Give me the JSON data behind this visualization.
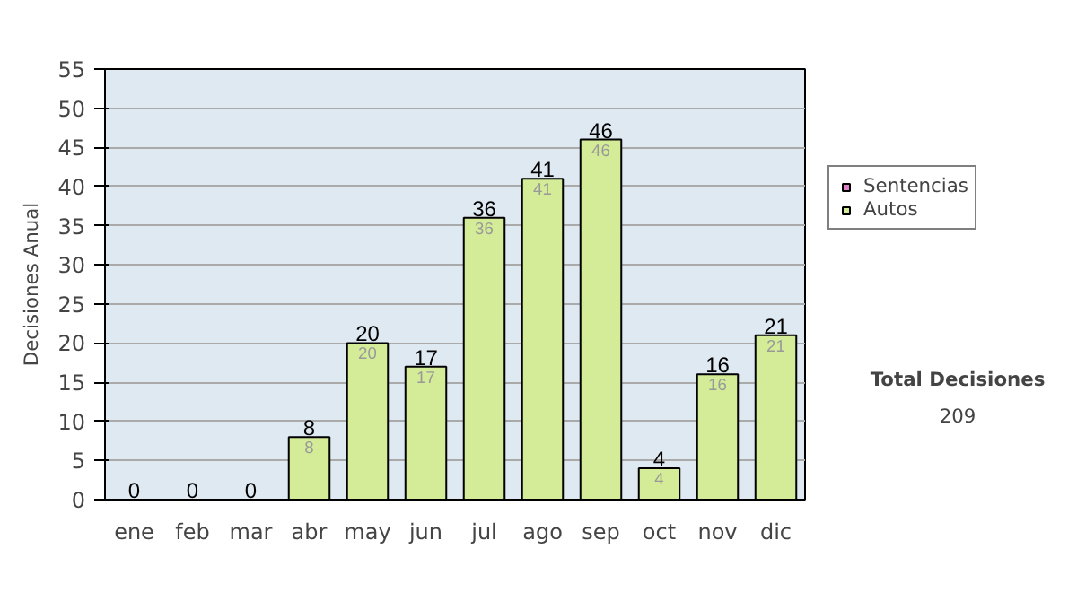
{
  "chart_data": {
    "type": "bar",
    "stacked": true,
    "ylabel": "Decisiones Anual",
    "categories": [
      "ene",
      "feb",
      "mar",
      "abr",
      "may",
      "jun",
      "jul",
      "ago",
      "sep",
      "oct",
      "nov",
      "dic"
    ],
    "series": [
      {
        "name": "Sentencias",
        "color": "#e080c8",
        "values": [
          0,
          0,
          0,
          0,
          0,
          0,
          0,
          0,
          0,
          0,
          0,
          0
        ]
      },
      {
        "name": "Autos",
        "color": "#d4ec98",
        "values": [
          0,
          0,
          0,
          8,
          20,
          17,
          36,
          41,
          46,
          4,
          16,
          21
        ],
        "value_labels": [
          null,
          null,
          null,
          "8",
          "20",
          "17",
          "36",
          "41",
          "46",
          "4",
          "16",
          "21"
        ]
      }
    ],
    "totals": [
      "0",
      "0",
      "0",
      "8",
      "20",
      "17",
      "36",
      "41",
      "46",
      "4",
      "16",
      "21"
    ],
    "ylim": [
      0,
      55
    ],
    "yticks": [
      0,
      5,
      10,
      15,
      20,
      25,
      30,
      35,
      40,
      45,
      50,
      55
    ],
    "grid": "y",
    "legend": "right",
    "annotations": [
      "Total Decisiones",
      "209"
    ]
  }
}
